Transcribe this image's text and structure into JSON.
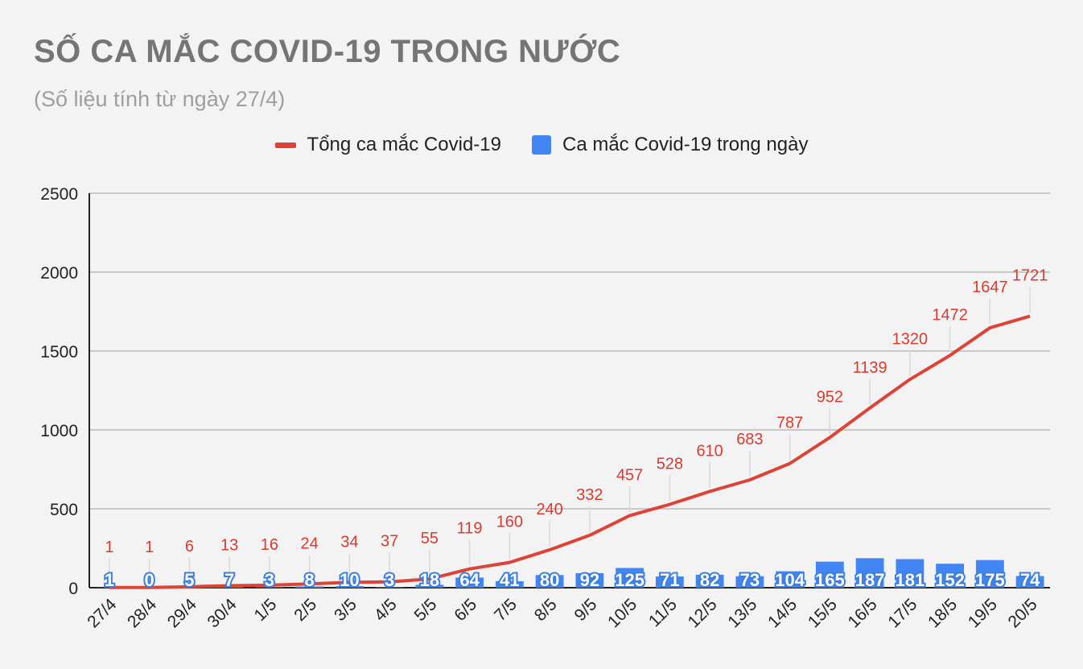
{
  "title": "SỐ CA MẮC COVID-19 TRONG NƯỚC",
  "subtitle": "(Số liệu tính từ ngày 27/4)",
  "colors": {
    "total": "#db4437",
    "daily": "#4285f4",
    "grid": "#c8c8c8",
    "background": "#f3f3f3"
  },
  "chart_data": {
    "type": "bar",
    "title": "SỐ CA MẮC COVID-19 TRONG NƯỚC",
    "subtitle": "(Số liệu tính từ ngày 27/4)",
    "xlabel": "",
    "ylabel": "",
    "ylim": [
      0,
      2500
    ],
    "yticks": [
      0,
      500,
      1000,
      1500,
      2000,
      2500
    ],
    "grid": true,
    "legend_position": "top-center",
    "categories": [
      "27/4",
      "28/4",
      "29/4",
      "30/4",
      "1/5",
      "2/5",
      "3/5",
      "4/5",
      "5/5",
      "6/5",
      "7/5",
      "8/5",
      "9/5",
      "10/5",
      "11/5",
      "12/5",
      "13/5",
      "14/5",
      "15/5",
      "16/5",
      "17/5",
      "18/5",
      "19/5",
      "20/5"
    ],
    "series": [
      {
        "name": "Tổng ca mắc Covid-19",
        "type": "line",
        "values": [
          1,
          1,
          6,
          13,
          16,
          24,
          34,
          37,
          55,
          119,
          160,
          240,
          332,
          457,
          528,
          610,
          683,
          787,
          952,
          1139,
          1320,
          1472,
          1647,
          1721
        ]
      },
      {
        "name": "Ca mắc Covid-19 trong ngày",
        "type": "bar",
        "values": [
          1,
          0,
          5,
          7,
          3,
          8,
          10,
          3,
          18,
          64,
          41,
          80,
          92,
          125,
          71,
          82,
          73,
          104,
          165,
          187,
          181,
          152,
          175,
          74
        ]
      }
    ]
  }
}
